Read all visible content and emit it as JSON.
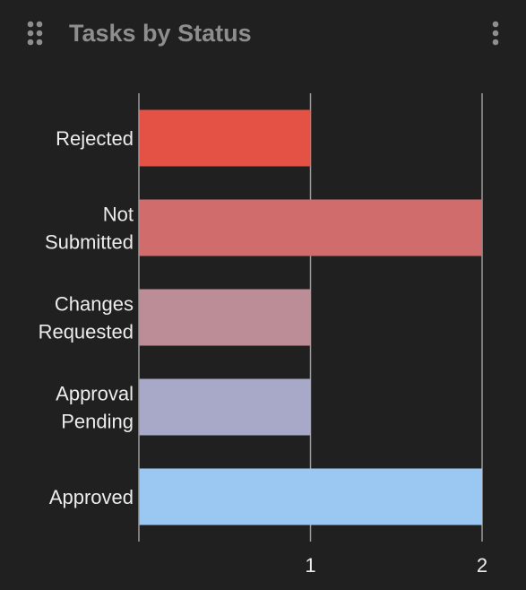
{
  "widget": {
    "title": "Tasks by Status",
    "drag_icon": "drag-handle-icon",
    "menu_icon": "more-vertical-icon"
  },
  "chart_data": {
    "type": "bar",
    "orientation": "horizontal",
    "title": "Tasks by Status",
    "xlabel": "",
    "ylabel": "",
    "categories": [
      [
        "Rejected"
      ],
      [
        "Not",
        "Submitted"
      ],
      [
        "Changes",
        "Requested"
      ],
      [
        "Approval",
        "Pending"
      ],
      [
        "Approved"
      ]
    ],
    "values": [
      1,
      2,
      1,
      1,
      2
    ],
    "colors": [
      "#e35244",
      "#d06c6c",
      "#bc8c97",
      "#a8a9c8",
      "#9ac8f3"
    ],
    "xlim": [
      0,
      2
    ],
    "xticks": [
      1,
      2
    ],
    "grid": true,
    "legend": "none"
  }
}
